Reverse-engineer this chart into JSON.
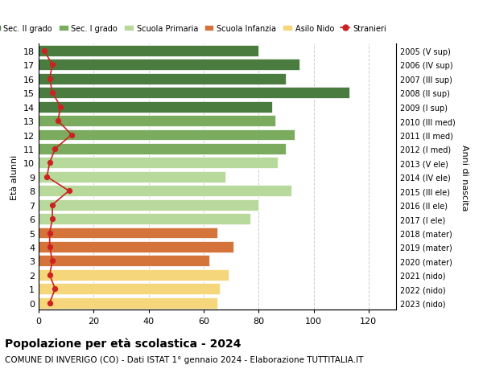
{
  "ages": [
    18,
    17,
    16,
    15,
    14,
    13,
    12,
    11,
    10,
    9,
    8,
    7,
    6,
    5,
    4,
    3,
    2,
    1,
    0
  ],
  "right_labels": [
    "2005 (V sup)",
    "2006 (IV sup)",
    "2007 (III sup)",
    "2008 (II sup)",
    "2009 (I sup)",
    "2010 (III med)",
    "2011 (II med)",
    "2012 (I med)",
    "2013 (V ele)",
    "2014 (IV ele)",
    "2015 (III ele)",
    "2016 (II ele)",
    "2017 (I ele)",
    "2018 (mater)",
    "2019 (mater)",
    "2020 (mater)",
    "2021 (nido)",
    "2022 (nido)",
    "2023 (nido)"
  ],
  "bar_values": [
    80,
    95,
    90,
    113,
    85,
    86,
    93,
    90,
    87,
    68,
    92,
    80,
    77,
    65,
    71,
    62,
    69,
    66,
    65
  ],
  "stranieri": [
    2,
    5,
    4,
    5,
    8,
    7,
    12,
    6,
    4,
    3,
    11,
    5,
    5,
    4,
    4,
    5,
    4,
    6,
    4
  ],
  "bar_colors": [
    "#4a7c3f",
    "#4a7c3f",
    "#4a7c3f",
    "#4a7c3f",
    "#4a7c3f",
    "#7aab5e",
    "#7aab5e",
    "#7aab5e",
    "#b8d99c",
    "#b8d99c",
    "#b8d99c",
    "#b8d99c",
    "#b8d99c",
    "#d4733a",
    "#d4733a",
    "#d4733a",
    "#f5d67a",
    "#f5d67a",
    "#f5d67a"
  ],
  "legend_items": [
    {
      "label": "Sec. II grado",
      "color": "#4a7c3f"
    },
    {
      "label": "Sec. I grado",
      "color": "#7aab5e"
    },
    {
      "label": "Scuola Primaria",
      "color": "#b8d99c"
    },
    {
      "label": "Scuola Infanzia",
      "color": "#d4733a"
    },
    {
      "label": "Asilo Nido",
      "color": "#f5d67a"
    },
    {
      "label": "Stranieri",
      "color": "#cc2222"
    }
  ],
  "title": "Popolazione per età scolastica - 2024",
  "subtitle": "COMUNE DI INVERIGO (CO) - Dati ISTAT 1° gennaio 2024 - Elaborazione TUTTITALIA.IT",
  "xlabel": "",
  "ylabel": "Età alunni",
  "right_ylabel": "Anni di nascita",
  "xlim": [
    0,
    130
  ],
  "xticks": [
    0,
    20,
    40,
    60,
    80,
    100,
    120
  ],
  "background_color": "#ffffff",
  "bar_height": 0.8,
  "grid_color": "#cccccc"
}
